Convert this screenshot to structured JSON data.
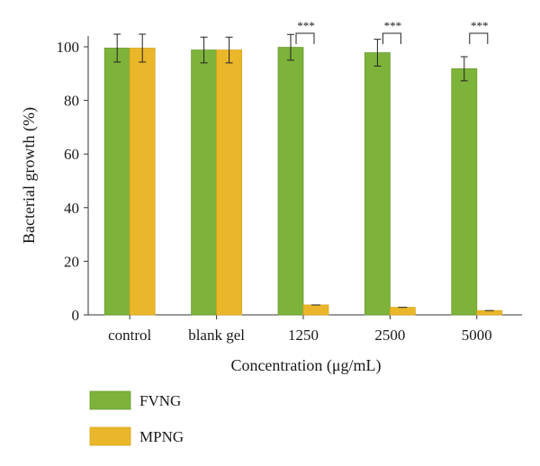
{
  "chart_data": {
    "type": "bar",
    "xlabel": "Concentration (μg/mL)",
    "ylabel": "Bacterial growth (%)",
    "ylim": [
      0,
      105
    ],
    "yticks": [
      "0",
      "20",
      "40",
      "60",
      "80",
      "100"
    ],
    "categories": [
      "control",
      "blank gel",
      "1250",
      "2500",
      "5000"
    ],
    "series": [
      {
        "name": "FVNG",
        "color": "#7db33a",
        "values": [
          99.5,
          98.8,
          99.8,
          97.8,
          91.8
        ],
        "errors": [
          5.2,
          4.8,
          4.8,
          5.0,
          4.5
        ]
      },
      {
        "name": "MPNG",
        "color": "#eab72a",
        "values": [
          99.5,
          98.8,
          3.7,
          2.8,
          1.6
        ],
        "errors": [
          5.2,
          4.8,
          0,
          0,
          0
        ]
      }
    ],
    "significance": [
      {
        "category": "1250",
        "label": "***"
      },
      {
        "category": "2500",
        "label": "***"
      },
      {
        "category": "5000",
        "label": "***"
      }
    ],
    "legend_position": "bottom-left",
    "grid": false
  }
}
